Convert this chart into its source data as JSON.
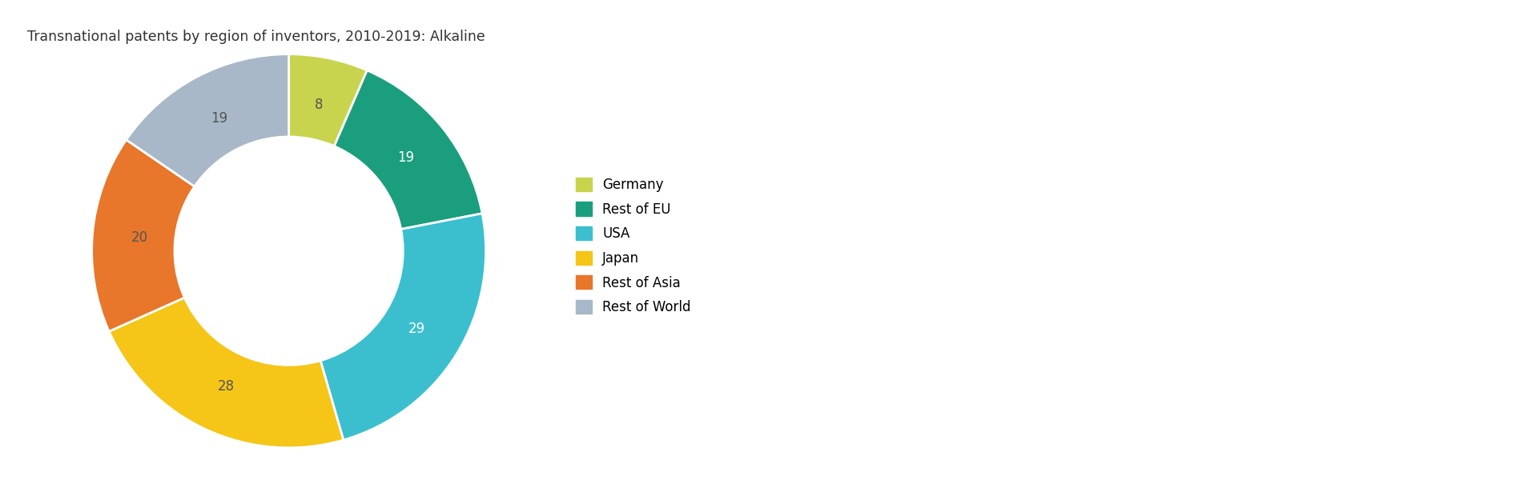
{
  "title": "Transnational patents by region of inventors, 2010-2019: Alkaline",
  "title_fontsize": 12.5,
  "labels": [
    "Germany",
    "Rest of EU",
    "USA",
    "Japan",
    "Rest of Asia",
    "Rest of World"
  ],
  "values": [
    8,
    19,
    29,
    28,
    20,
    19
  ],
  "colors": [
    "#c8d44e",
    "#1a9e7e",
    "#3bbfcf",
    "#f5c518",
    "#e8762b",
    "#a8b8c8"
  ],
  "label_colors": [
    "#555555",
    "#ffffff",
    "#ffffff",
    "#555555",
    "#555555",
    "#555555"
  ],
  "legend_labels": [
    "Germany",
    "Rest of EU",
    "USA",
    "Japan",
    "Rest of Asia",
    "Rest of World"
  ],
  "wedge_label_fontsize": 12,
  "legend_fontsize": 12,
  "background_color": "#ffffff",
  "donut_width": 0.42
}
